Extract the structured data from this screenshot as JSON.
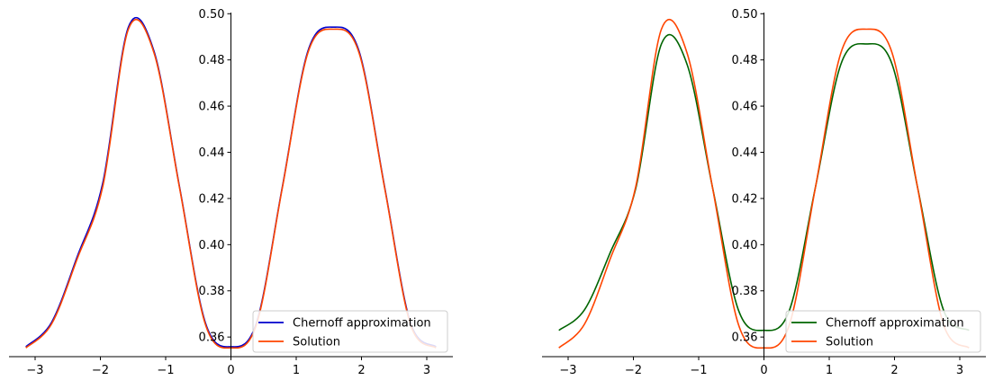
{
  "chart_data": [
    {
      "type": "line",
      "title": "",
      "xlabel": "",
      "ylabel": "",
      "xlim": [
        -3.4,
        3.4
      ],
      "ylim": [
        0.3515,
        0.5005
      ],
      "xticks": [
        -3,
        -2,
        -1,
        0,
        1,
        2,
        3
      ],
      "xtick_labels": [
        "−3",
        "−2",
        "−1",
        "0",
        "1",
        "2",
        "3"
      ],
      "yticks": [
        0.36,
        0.38,
        0.4,
        0.42,
        0.44,
        0.46,
        0.48,
        0.5
      ],
      "ytick_labels": [
        "0.36",
        "0.38",
        "0.40",
        "0.42",
        "0.44",
        "0.46",
        "0.48",
        "0.50"
      ],
      "spines": "axes cross at origin (left spine at x=0, bottom spine at bottom)",
      "grid": false,
      "legend": {
        "position": "lower-right"
      },
      "x": [
        -3.1416,
        -2.7489,
        -2.3562,
        -1.9635,
        -1.5708,
        -1.1781,
        -0.7854,
        -0.3927,
        0.0,
        0.3927,
        0.7854,
        1.1781,
        1.5708,
        1.9635,
        2.3562,
        2.7489,
        3.1416
      ],
      "series": [
        {
          "name": "Chernoff approximation",
          "color": "#0000cc",
          "values": [
            0.3558,
            0.3663,
            0.3947,
            0.4267,
            0.4942,
            0.4837,
            0.4247,
            0.3663,
            0.3558,
            0.3663,
            0.4247,
            0.4837,
            0.4942,
            0.4837,
            0.4247,
            0.3663,
            0.3558
          ]
        },
        {
          "name": "Solution",
          "color": "#ff4500",
          "values": [
            0.3553,
            0.3656,
            0.3938,
            0.4252,
            0.4933,
            0.483,
            0.4243,
            0.3656,
            0.3553,
            0.3656,
            0.4243,
            0.483,
            0.4933,
            0.483,
            0.4243,
            0.3656,
            0.3553
          ]
        }
      ]
    },
    {
      "type": "line",
      "title": "",
      "xlabel": "",
      "ylabel": "",
      "xlim": [
        -3.4,
        3.4
      ],
      "ylim": [
        0.3515,
        0.5005
      ],
      "xticks": [
        -3,
        -2,
        -1,
        0,
        1,
        2,
        3
      ],
      "xtick_labels": [
        "−3",
        "−2",
        "−1",
        "0",
        "1",
        "2",
        "3"
      ],
      "yticks": [
        0.36,
        0.38,
        0.4,
        0.42,
        0.44,
        0.46,
        0.48,
        0.5
      ],
      "ytick_labels": [
        "0.36",
        "0.38",
        "0.40",
        "0.42",
        "0.44",
        "0.46",
        "0.48",
        "0.50"
      ],
      "spines": "axes cross at origin (left spine at x=0, bottom spine at bottom)",
      "grid": false,
      "legend": {
        "position": "lower-right"
      },
      "x": [
        -3.1416,
        -2.7489,
        -2.3562,
        -1.9635,
        -1.5708,
        -1.1781,
        -0.7854,
        -0.3927,
        0.0,
        0.3927,
        0.7854,
        1.1781,
        1.5708,
        1.9635,
        2.3562,
        2.7489,
        3.1416
      ],
      "series": [
        {
          "name": "Chernoff approximation",
          "color": "#006400",
          "values": [
            0.3629,
            0.3718,
            0.3965,
            0.4244,
            0.4869,
            0.4781,
            0.4244,
            0.3718,
            0.3629,
            0.3718,
            0.4244,
            0.4781,
            0.4869,
            0.4781,
            0.4244,
            0.3718,
            0.3629
          ]
        },
        {
          "name": "Solution",
          "color": "#ff4500",
          "values": [
            0.3553,
            0.3656,
            0.3938,
            0.4252,
            0.4933,
            0.483,
            0.4243,
            0.3656,
            0.3553,
            0.3656,
            0.4243,
            0.483,
            0.4933,
            0.483,
            0.4243,
            0.3656,
            0.3553
          ]
        }
      ]
    }
  ]
}
